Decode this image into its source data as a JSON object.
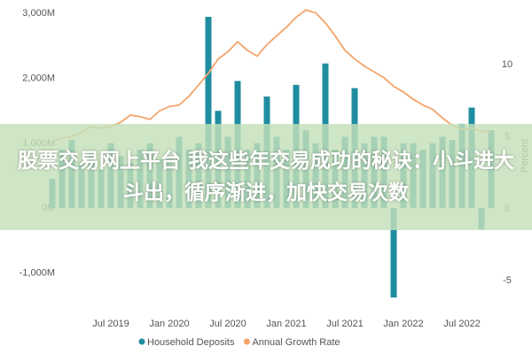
{
  "chart_data": {
    "type": "bar",
    "categories": [
      null,
      null,
      null,
      null,
      null,
      null,
      "Jul 2019",
      null,
      null,
      null,
      null,
      null,
      "Jan 2020",
      null,
      null,
      null,
      null,
      null,
      "Jul 2020",
      null,
      null,
      null,
      null,
      null,
      "Jan 2021",
      null,
      null,
      null,
      null,
      null,
      "Jul 2021",
      null,
      null,
      null,
      null,
      null,
      "Jan 2022",
      null,
      null,
      null,
      null,
      null,
      "Jul 2022",
      null,
      null,
      null
    ],
    "series": [
      {
        "name": "Household Deposits",
        "color": "#1f8ca0",
        "type": "bar",
        "values": [
          450,
          900,
          1050,
          700,
          850,
          600,
          1000,
          800,
          700,
          900,
          1000,
          750,
          800,
          1100,
          900,
          1000,
          2950,
          1500,
          1100,
          1960,
          900,
          1000,
          1720,
          1100,
          900,
          1900,
          1200,
          1000,
          2230,
          900,
          1100,
          1850,
          1000,
          1100,
          1100,
          -1380,
          1000,
          1000,
          900,
          1000,
          1100,
          1050,
          1300,
          1550,
          -330,
          1200
        ]
      },
      {
        "name": "Annual Growth Rate",
        "color": "#f4a46a",
        "type": "line",
        "axis": "y2",
        "values": [
          4.7,
          4.9,
          5.0,
          5.3,
          5.7,
          5.6,
          5.7,
          6.0,
          6.5,
          6.4,
          6.2,
          6.8,
          7.1,
          7.2,
          7.8,
          8.6,
          9.4,
          10.4,
          10.9,
          11.6,
          11.0,
          10.6,
          11.4,
          12.0,
          12.6,
          13.3,
          13.8,
          13.6,
          12.9,
          12.0,
          11.0,
          10.4,
          9.9,
          9.5,
          9.1,
          8.5,
          8.1,
          7.6,
          7.2,
          6.9,
          6.3,
          5.8,
          5.5,
          5.6,
          5.4,
          5.3
        ]
      }
    ],
    "ylim": [
      -1500,
      3100
    ],
    "yticks": [
      {
        "value": -1000,
        "label": "-1,000M"
      },
      {
        "value": 0,
        "label": "0M"
      },
      {
        "value": 1000,
        "label": "1,000M"
      },
      {
        "value": 2000,
        "label": "2,000M"
      },
      {
        "value": 3000,
        "label": "3,000M"
      }
    ],
    "y2lim": [
      -6.7,
      14.0
    ],
    "y2ticks": [
      -5,
      0,
      5,
      10
    ],
    "y2label": "Percent",
    "legend": "bottom",
    "overlay_title": "股票交易网上平台 我这些年交易成功的秘诀：小斗进大斗出，循序渐进，加快交易次数"
  }
}
